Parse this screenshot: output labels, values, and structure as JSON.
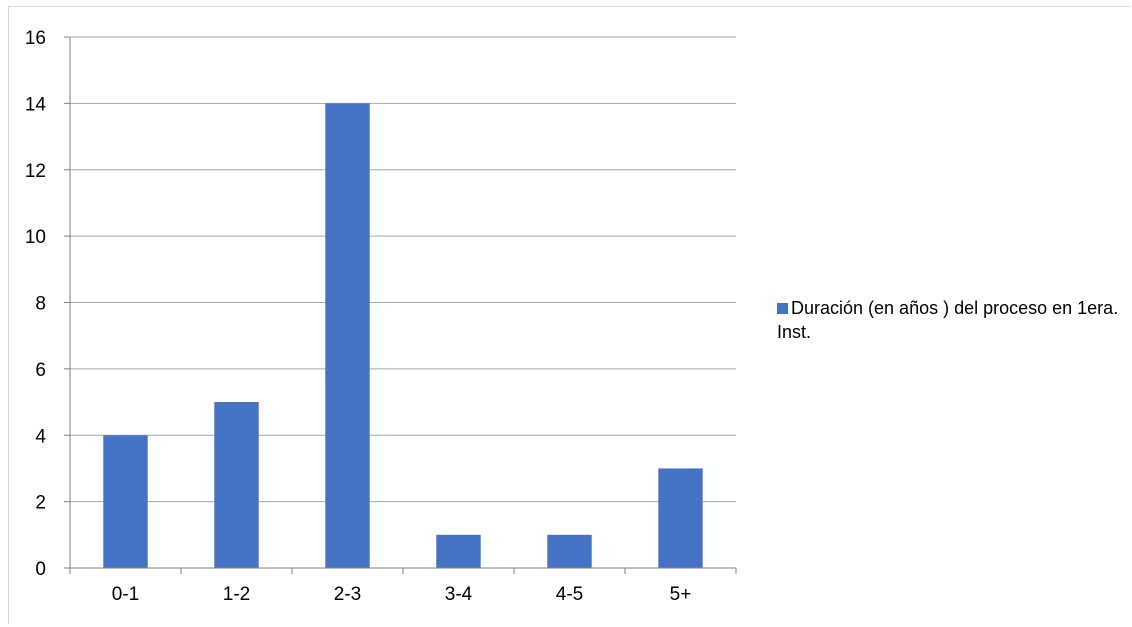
{
  "chart_data": {
    "type": "bar",
    "title": "",
    "xlabel": "",
    "ylabel": "",
    "categories": [
      "0-1",
      "1-2",
      "2-3",
      "3-4",
      "4-5",
      "5+"
    ],
    "series": [
      {
        "name": "Duración (en años ) del proceso en 1era. Inst.",
        "values": [
          4,
          5,
          14,
          1,
          1,
          3
        ],
        "color": "#4472C4"
      }
    ],
    "ylim": [
      0,
      16
    ],
    "yticks": [
      "0",
      "2",
      "4",
      "6",
      "8",
      "10",
      "12",
      "14",
      "16"
    ],
    "grid": true,
    "legend_position": "right"
  },
  "legend": {
    "label": "Duración (en años ) del proceso en 1era. Inst."
  },
  "colors": {
    "bar": "#4472C4",
    "grid": "#a6a6a6",
    "axis": "#808080"
  }
}
